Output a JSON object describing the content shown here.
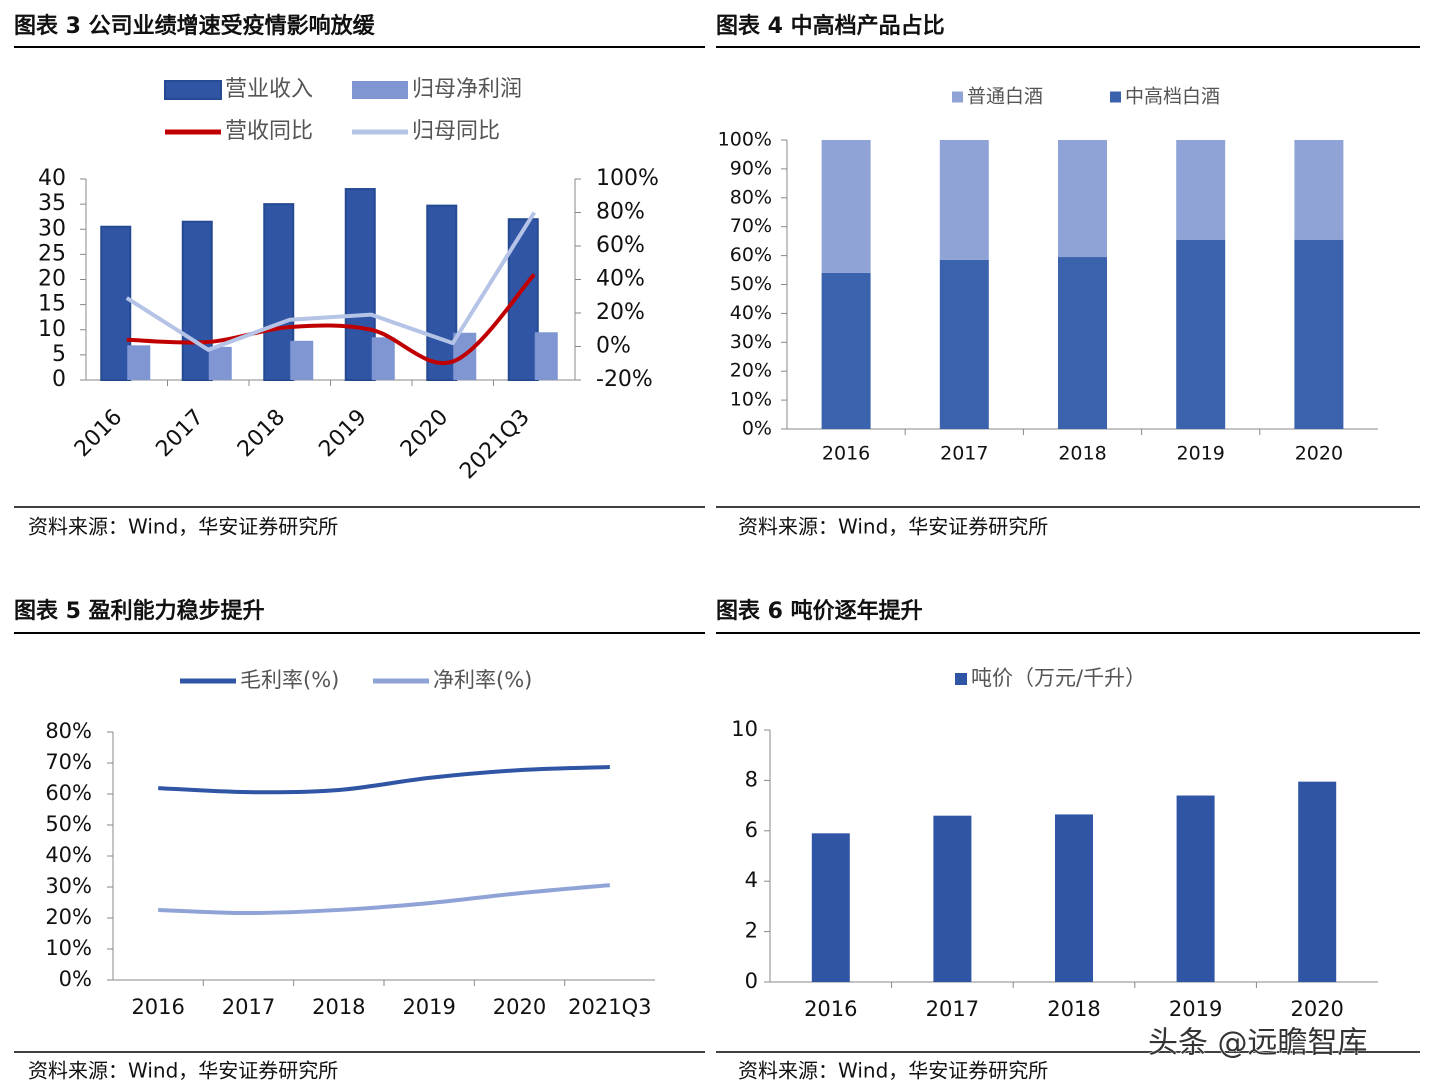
{
  "watermark": "头条 @远瞻智库",
  "chart_data": [
    {
      "type": "combo",
      "title": "图表 3 公司业绩增速受疫情影响放缓",
      "source": "资料来源：Wind，华安证券研究所",
      "categories": [
        "2016",
        "2017",
        "2018",
        "2019",
        "2020",
        "2021Q3"
      ],
      "series": [
        {
          "name": "营业收入",
          "type": "bar",
          "color": "#2f55a4",
          "values": [
            30.5,
            31.5,
            35,
            38,
            34.7,
            32
          ]
        },
        {
          "name": "归母净利润",
          "type": "bar",
          "color": "#7f96d2",
          "values": [
            6.9,
            6.6,
            7.8,
            8.5,
            9.4,
            9.5
          ]
        },
        {
          "name": "营收同比",
          "type": "line",
          "axis": "y2",
          "color": "#c00000",
          "smooth": true,
          "values": [
            4,
            2.7,
            11.6,
            10,
            -9,
            43
          ]
        },
        {
          "name": "归母同比",
          "type": "line",
          "axis": "y2",
          "color": "#b4c3e6",
          "smooth": false,
          "values": [
            29,
            -2,
            16,
            19,
            2,
            80
          ]
        }
      ],
      "ylim": [
        0,
        40
      ],
      "yticks": [
        0,
        5,
        10,
        15,
        20,
        25,
        30,
        35,
        40
      ],
      "y2lim": [
        -20,
        100
      ],
      "y2ticks": [
        {
          "value": -20,
          "label": "-20%"
        },
        {
          "value": 0,
          "label": "0%"
        },
        {
          "value": 20,
          "label": "20%"
        },
        {
          "value": 40,
          "label": "40%"
        },
        {
          "value": 60,
          "label": "60%"
        },
        {
          "value": 80,
          "label": "80%"
        },
        {
          "value": 100,
          "label": "100%"
        }
      ]
    },
    {
      "type": "stacked_bar",
      "title": "图表 4 中高档产品占比",
      "source": "资料来源：Wind，华安证券研究所",
      "categories": [
        "2016",
        "2017",
        "2018",
        "2019",
        "2020"
      ],
      "series": [
        {
          "name": "普通白酒",
          "color": "#8fa3d6",
          "values": [
            46,
            41.5,
            40.5,
            34.5,
            34.5
          ]
        },
        {
          "name": "中高档白酒",
          "color": "#3a62ad",
          "values": [
            54,
            58.5,
            59.5,
            65.5,
            65.5
          ]
        }
      ],
      "ylim": [
        0,
        100
      ],
      "yticks": [
        {
          "value": 0,
          "label": "0%"
        },
        {
          "value": 10,
          "label": "10%"
        },
        {
          "value": 20,
          "label": "20%"
        },
        {
          "value": 30,
          "label": "30%"
        },
        {
          "value": 40,
          "label": "40%"
        },
        {
          "value": 50,
          "label": "50%"
        },
        {
          "value": 60,
          "label": "60%"
        },
        {
          "value": 70,
          "label": "70%"
        },
        {
          "value": 80,
          "label": "80%"
        },
        {
          "value": 90,
          "label": "90%"
        },
        {
          "value": 100,
          "label": "100%"
        }
      ]
    },
    {
      "type": "line",
      "title": "图表 5 盈利能力稳步提升",
      "source": "资料来源：Wind，华安证券研究所",
      "categories": [
        "2016",
        "2017",
        "2018",
        "2019",
        "2020",
        "2021Q3"
      ],
      "series": [
        {
          "name": "毛利率(%)",
          "color": "#2f55a4",
          "smooth": true,
          "values": [
            61.9,
            60.6,
            61.3,
            65.2,
            67.7,
            68.7
          ]
        },
        {
          "name": "净利率(%)",
          "color": "#8fa3d6",
          "smooth": true,
          "values": [
            22.6,
            21.6,
            22.6,
            24.8,
            28,
            30.6
          ]
        }
      ],
      "ylim": [
        0,
        80
      ],
      "yticks": [
        {
          "value": 0,
          "label": "0%"
        },
        {
          "value": 10,
          "label": "10%"
        },
        {
          "value": 20,
          "label": "20%"
        },
        {
          "value": 30,
          "label": "30%"
        },
        {
          "value": 40,
          "label": "40%"
        },
        {
          "value": 50,
          "label": "50%"
        },
        {
          "value": 60,
          "label": "60%"
        },
        {
          "value": 70,
          "label": "70%"
        },
        {
          "value": 80,
          "label": "80%"
        }
      ]
    },
    {
      "type": "bar",
      "title": "图表 6 吨价逐年提升",
      "source": "资料来源：Wind，华安证券研究所",
      "categories": [
        "2016",
        "2017",
        "2018",
        "2019",
        "2020"
      ],
      "series": [
        {
          "name": "吨价（万元/千升）",
          "color": "#2f55a4",
          "values": [
            5.9,
            6.6,
            6.65,
            7.4,
            7.95
          ]
        }
      ],
      "ylim": [
        0,
        10
      ],
      "yticks": [
        0,
        2,
        4,
        6,
        8,
        10
      ]
    }
  ]
}
